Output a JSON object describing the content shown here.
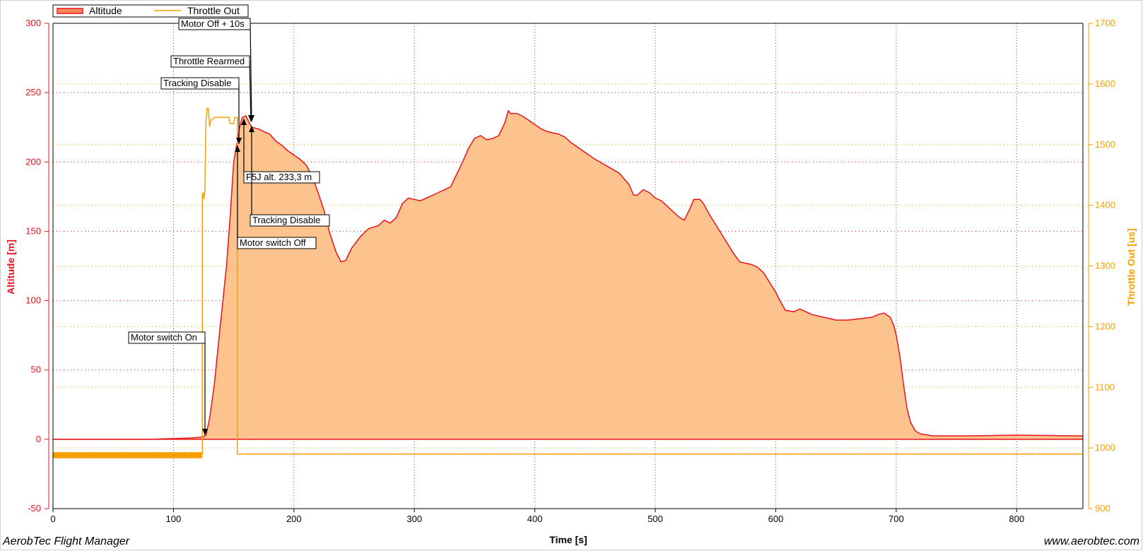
{
  "chart_data": {
    "type": "area",
    "xlabel": "Time [s]",
    "ylabel": "Altitude [m]",
    "y2label": "Throttle Out [us]",
    "xlim": [
      0,
      855
    ],
    "ylim": [
      -50,
      300
    ],
    "y2lim": [
      900,
      1700
    ],
    "x_ticks": [
      "0",
      "100",
      "200",
      "300",
      "400",
      "500",
      "600",
      "700",
      "800"
    ],
    "y_ticks": [
      "-50",
      "0",
      "50",
      "100",
      "150",
      "200",
      "250",
      "300"
    ],
    "y2_ticks": [
      "900",
      "1000",
      "1100",
      "1200",
      "1300",
      "1400",
      "1500",
      "1600",
      "1700"
    ],
    "grid": true,
    "legend_position": "top-left",
    "series": [
      {
        "name": "Altitude",
        "axis": "left",
        "style": "area",
        "color": "#e8141c",
        "fill": "#fcc38e",
        "points": [
          [
            0,
            0
          ],
          [
            20,
            0
          ],
          [
            50,
            0
          ],
          [
            80,
            0
          ],
          [
            100,
            0.5
          ],
          [
            115,
            1
          ],
          [
            124,
            1.5
          ],
          [
            127,
            3
          ],
          [
            130,
            15
          ],
          [
            134,
            40
          ],
          [
            138,
            75
          ],
          [
            141,
            100
          ],
          [
            144,
            125
          ],
          [
            147,
            160
          ],
          [
            150,
            200
          ],
          [
            153,
            215
          ],
          [
            155,
            225
          ],
          [
            157,
            232
          ],
          [
            160,
            233.3
          ],
          [
            163,
            228
          ],
          [
            165,
            225
          ],
          [
            170,
            224
          ],
          [
            175,
            222
          ],
          [
            180,
            220
          ],
          [
            185,
            215
          ],
          [
            190,
            212
          ],
          [
            195,
            208
          ],
          [
            200,
            205
          ],
          [
            205,
            202
          ],
          [
            210,
            198
          ],
          [
            215,
            190
          ],
          [
            220,
            178
          ],
          [
            225,
            165
          ],
          [
            230,
            148
          ],
          [
            235,
            135
          ],
          [
            239,
            128
          ],
          [
            243,
            129
          ],
          [
            248,
            138
          ],
          [
            255,
            146
          ],
          [
            262,
            152
          ],
          [
            270,
            154
          ],
          [
            275,
            158
          ],
          [
            280,
            156
          ],
          [
            285,
            160
          ],
          [
            290,
            170
          ],
          [
            295,
            174
          ],
          [
            300,
            173
          ],
          [
            305,
            172
          ],
          [
            310,
            174
          ],
          [
            320,
            178
          ],
          [
            330,
            182
          ],
          [
            340,
            200
          ],
          [
            345,
            210
          ],
          [
            350,
            217
          ],
          [
            355,
            219
          ],
          [
            360,
            216
          ],
          [
            365,
            217
          ],
          [
            370,
            219
          ],
          [
            375,
            228
          ],
          [
            378,
            237
          ],
          [
            380,
            235
          ],
          [
            385,
            235
          ],
          [
            390,
            233
          ],
          [
            395,
            230
          ],
          [
            400,
            227
          ],
          [
            405,
            224
          ],
          [
            410,
            222
          ],
          [
            420,
            220
          ],
          [
            425,
            218
          ],
          [
            430,
            214
          ],
          [
            440,
            208
          ],
          [
            450,
            202
          ],
          [
            460,
            197
          ],
          [
            470,
            192
          ],
          [
            478,
            184
          ],
          [
            482,
            176
          ],
          [
            485,
            176
          ],
          [
            490,
            180
          ],
          [
            495,
            178
          ],
          [
            500,
            174
          ],
          [
            505,
            172
          ],
          [
            510,
            168
          ],
          [
            515,
            164
          ],
          [
            520,
            160
          ],
          [
            524,
            158
          ],
          [
            528,
            165
          ],
          [
            532,
            173
          ],
          [
            537,
            173
          ],
          [
            540,
            170
          ],
          [
            545,
            162
          ],
          [
            550,
            155
          ],
          [
            555,
            148
          ],
          [
            560,
            141
          ],
          [
            565,
            134
          ],
          [
            570,
            128
          ],
          [
            575,
            127
          ],
          [
            580,
            126
          ],
          [
            585,
            124
          ],
          [
            590,
            120
          ],
          [
            595,
            113
          ],
          [
            600,
            106
          ],
          [
            604,
            99
          ],
          [
            608,
            93
          ],
          [
            615,
            92
          ],
          [
            620,
            94
          ],
          [
            625,
            92
          ],
          [
            630,
            90
          ],
          [
            640,
            88
          ],
          [
            650,
            86
          ],
          [
            660,
            86
          ],
          [
            670,
            87
          ],
          [
            680,
            88
          ],
          [
            685,
            90
          ],
          [
            690,
            91
          ],
          [
            695,
            88
          ],
          [
            698,
            82
          ],
          [
            700,
            75
          ],
          [
            703,
            60
          ],
          [
            706,
            40
          ],
          [
            709,
            22
          ],
          [
            712,
            12
          ],
          [
            716,
            6
          ],
          [
            720,
            4
          ],
          [
            730,
            2.5
          ],
          [
            760,
            2.5
          ],
          [
            800,
            3
          ],
          [
            850,
            2.5
          ],
          [
            855,
            2.5
          ]
        ]
      },
      {
        "name": "Throttle Out",
        "axis": "right",
        "style": "line",
        "color": "#f5a000",
        "points": [
          [
            0,
            990
          ],
          [
            124,
            990
          ],
          [
            124,
            1420
          ],
          [
            125,
            1420
          ],
          [
            125,
            1410
          ],
          [
            126,
            1420
          ],
          [
            127,
            1540
          ],
          [
            128,
            1560
          ],
          [
            129,
            1560
          ],
          [
            130,
            1530
          ],
          [
            131,
            1540
          ],
          [
            134,
            1545
          ],
          [
            146,
            1545
          ],
          [
            147,
            1535
          ],
          [
            150,
            1535
          ],
          [
            151,
            1545
          ],
          [
            153,
            1545
          ],
          [
            153,
            990
          ],
          [
            855,
            990
          ]
        ]
      }
    ],
    "annotations": [
      {
        "label": "Motor Off + 10s",
        "x": 165,
        "y": 229
      },
      {
        "label": "Throttle Rearmed",
        "x": 165,
        "y": 229
      },
      {
        "label": "Tracking Disable",
        "x": 154,
        "y": 215
      },
      {
        "label": "F5J alt. 233,3 m",
        "x": 157,
        "y": 232
      },
      {
        "label": "Tracking Disable",
        "x": 165,
        "y": 227
      },
      {
        "label": "Motor switch Off",
        "x": 154,
        "y": 212
      },
      {
        "label": "Motor switch On",
        "x": 125,
        "y": 2
      }
    ]
  },
  "footer": {
    "app_name": "AerobTec Flight Manager",
    "website": "www.aerobtec.com"
  }
}
